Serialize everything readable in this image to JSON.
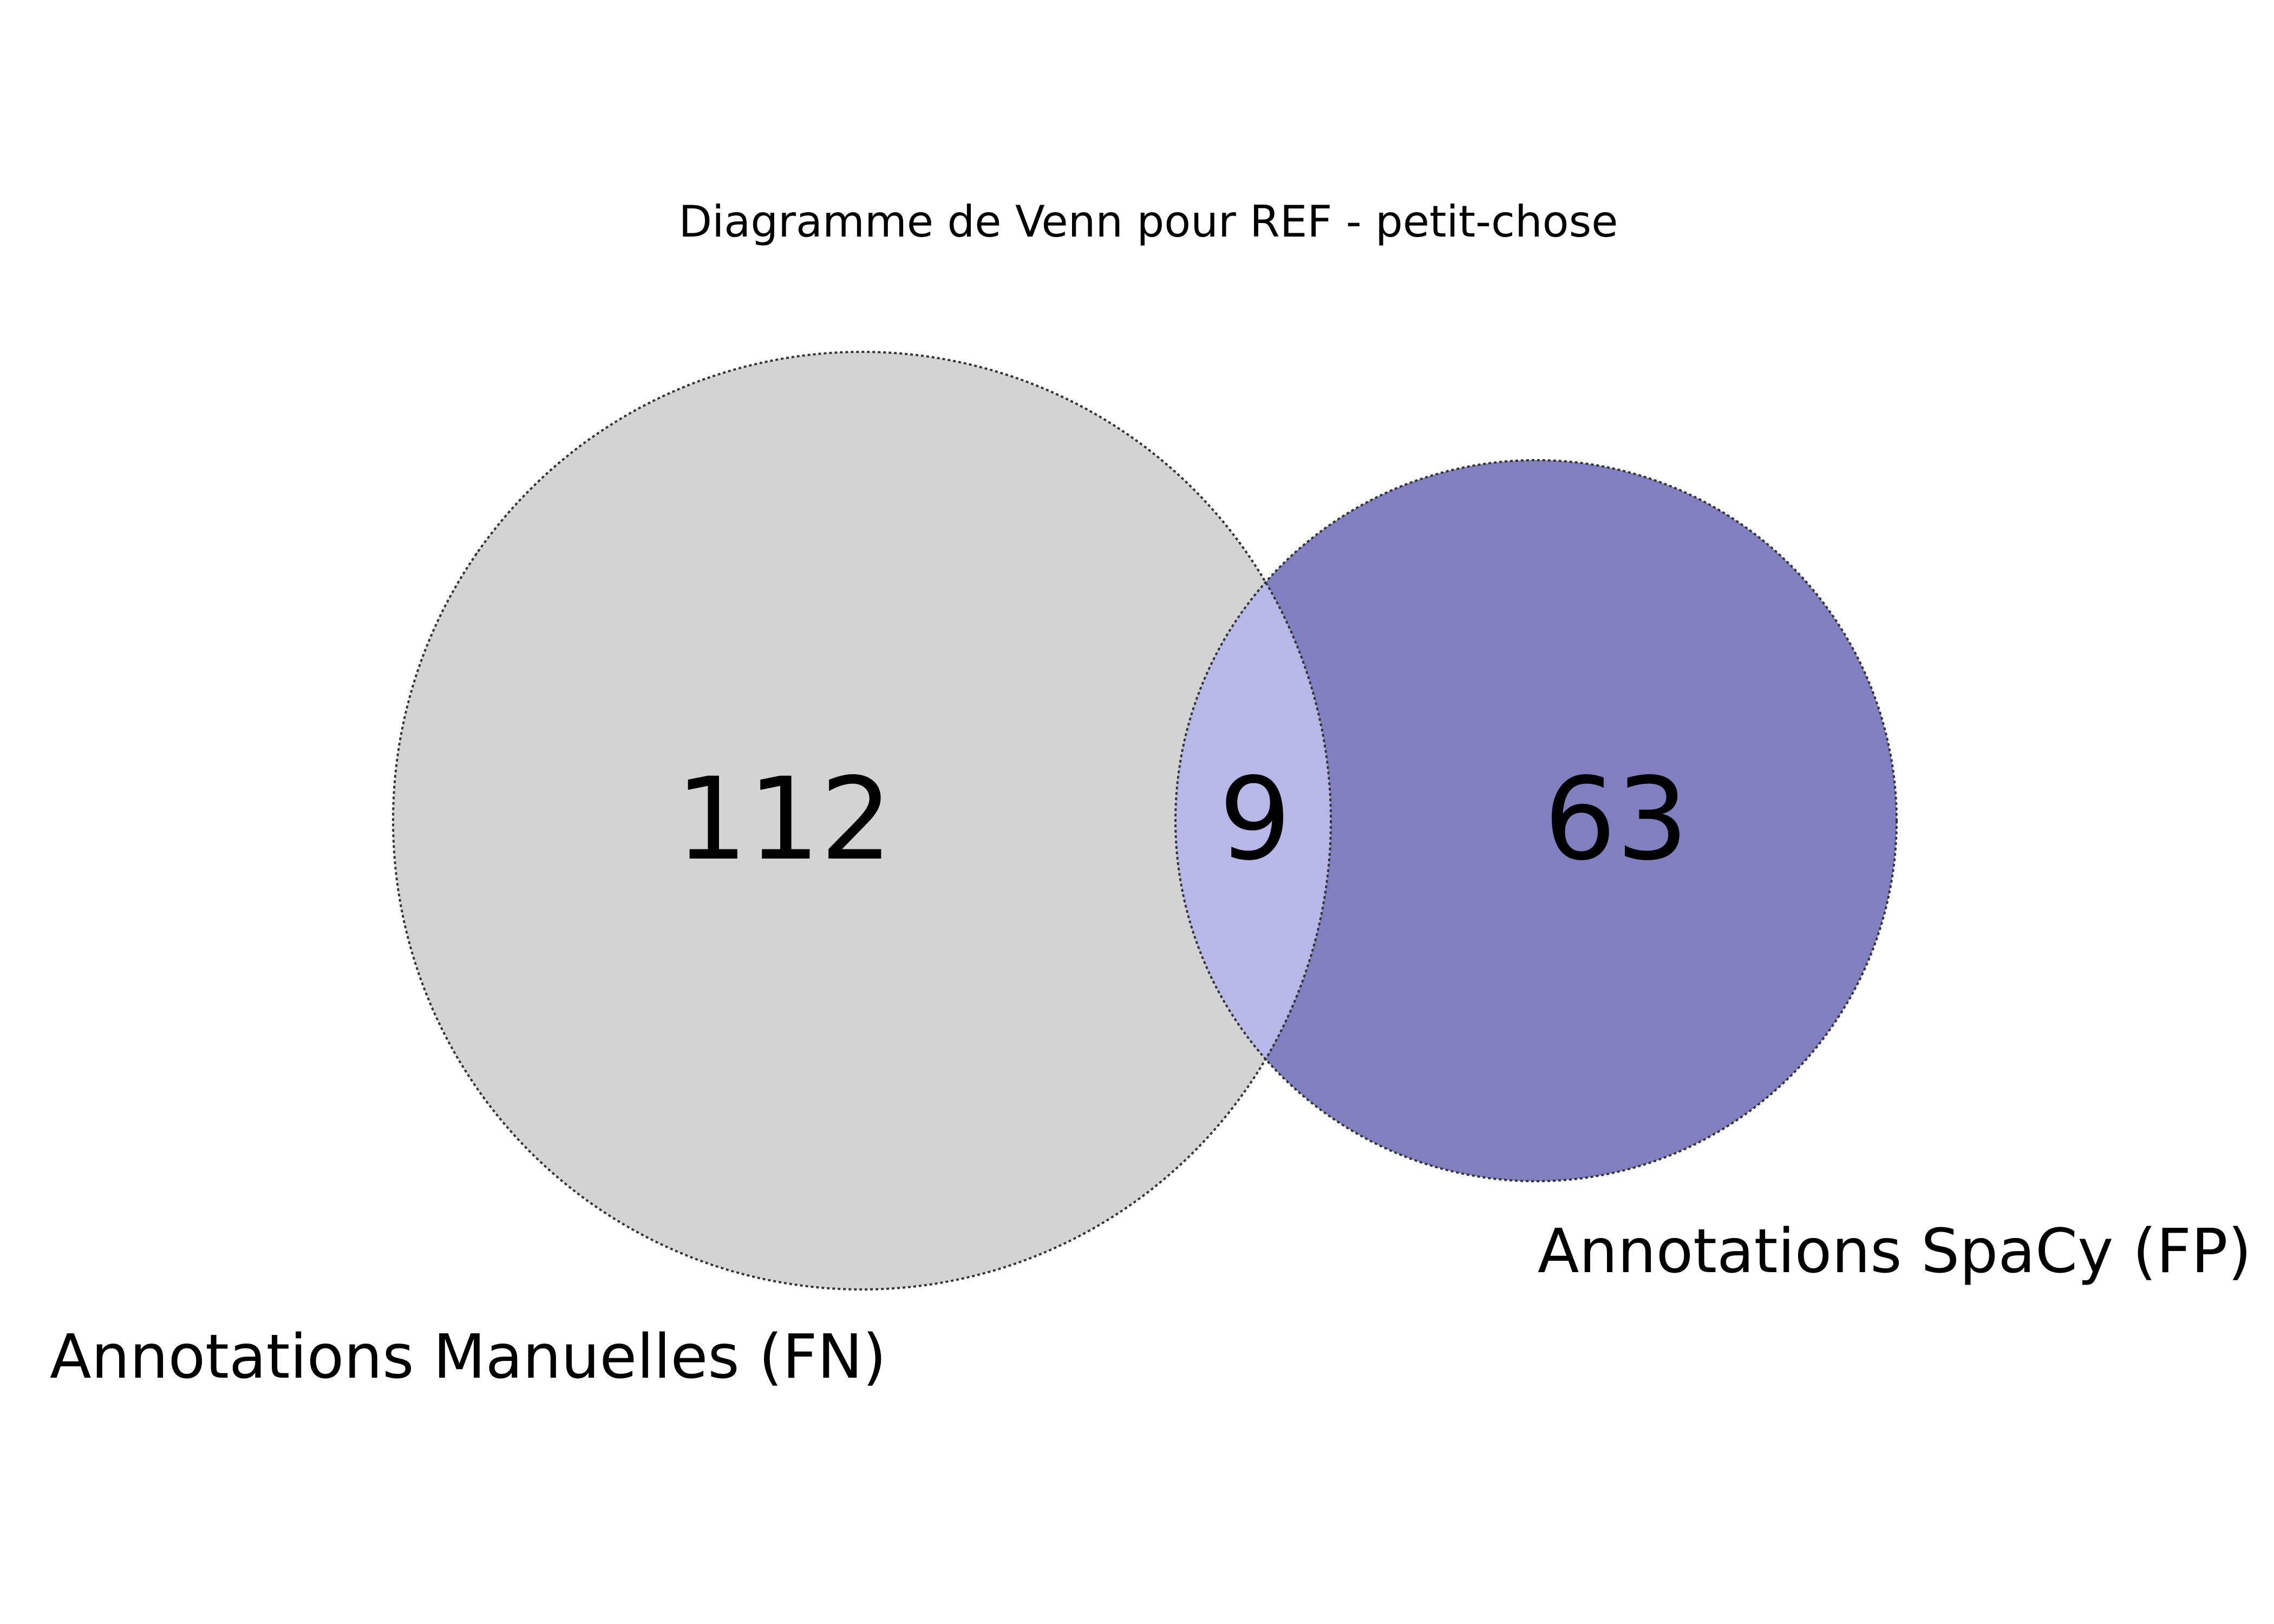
{
  "title": "Diagramme de Venn pour REF - petit-chose",
  "sets": [
    {
      "label": "Annotations Manuelles (FN)",
      "only_count": "112",
      "color": "#d3d3d3"
    },
    {
      "label": "Annotations SpaCy (FP)",
      "only_count": "63",
      "color": "#8080c0"
    }
  ],
  "intersection": {
    "count": "9",
    "color": "#b8b8e8"
  }
}
